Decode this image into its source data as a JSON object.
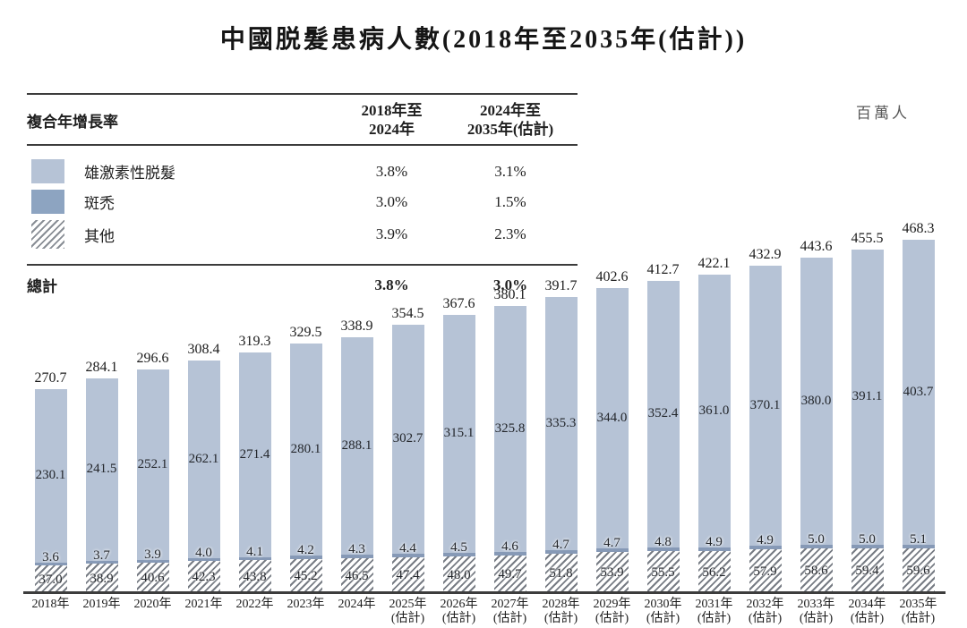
{
  "title": "中國脱髮患病人數(2018年至2035年(估計))",
  "unit_label": "百萬人",
  "cagr_table": {
    "row_header": "複合年增長率",
    "col1": {
      "line1": "2018年至",
      "line2": "2024年"
    },
    "col2": {
      "line1": "2024年至",
      "line2": "2035年(估計)"
    },
    "rows": [
      {
        "label": "雄激素性脱髮",
        "swatch": "light-blue",
        "cagr_2018_2024": "3.8%",
        "cagr_2024_2035": "3.1%"
      },
      {
        "label": "斑禿",
        "swatch": "medium-blue",
        "cagr_2018_2024": "3.0%",
        "cagr_2024_2035": "1.5%"
      },
      {
        "label": "其他",
        "swatch": "diagonal-hatch",
        "cagr_2018_2024": "3.9%",
        "cagr_2024_2035": "2.3%"
      }
    ],
    "total": {
      "label": "總計",
      "cagr_2018_2024": "3.8%",
      "cagr_2024_2035": "3.0%"
    }
  },
  "chart_data": {
    "type": "bar",
    "stacked": true,
    "title": "中國脱髮患病人數(2018年至2035年(估計))",
    "ylabel": "百萬人",
    "ylim": [
      0,
      500
    ],
    "legend_position": "top-left-table",
    "categories": [
      "2018年",
      "2019年",
      "2020年",
      "2021年",
      "2022年",
      "2023年",
      "2024年",
      "2025年",
      "2026年",
      "2027年",
      "2028年",
      "2029年",
      "2030年",
      "2031年",
      "2032年",
      "2033年",
      "2034年",
      "2035年"
    ],
    "estimate_label": "(估計)",
    "estimated": [
      false,
      false,
      false,
      false,
      false,
      false,
      false,
      true,
      true,
      true,
      true,
      true,
      true,
      true,
      true,
      true,
      true,
      true
    ],
    "series": [
      {
        "name": "雄激素性脱髮",
        "color": "#b6c3d6",
        "values": [
          230.1,
          241.5,
          252.1,
          262.1,
          271.4,
          280.1,
          288.1,
          302.7,
          315.1,
          325.8,
          335.3,
          344.0,
          352.4,
          361.0,
          370.1,
          380.0,
          391.1,
          403.7
        ]
      },
      {
        "name": "斑禿",
        "color": "#8699b6",
        "values": [
          3.6,
          3.7,
          3.9,
          4.0,
          4.1,
          4.2,
          4.3,
          4.4,
          4.5,
          4.6,
          4.7,
          4.7,
          4.8,
          4.9,
          4.9,
          5.0,
          5.0,
          5.1
        ]
      },
      {
        "name": "其他",
        "color": "diagonal-hatch",
        "values": [
          37.0,
          38.9,
          40.6,
          42.3,
          43.8,
          45.2,
          46.5,
          47.4,
          48.0,
          49.7,
          51.8,
          53.9,
          55.5,
          56.2,
          57.9,
          58.6,
          59.4,
          59.6
        ]
      }
    ],
    "totals": [
      270.7,
      284.1,
      296.6,
      308.4,
      319.3,
      329.5,
      338.9,
      354.5,
      367.6,
      380.1,
      391.7,
      402.6,
      412.7,
      422.1,
      432.9,
      443.6,
      455.5,
      468.3
    ]
  }
}
